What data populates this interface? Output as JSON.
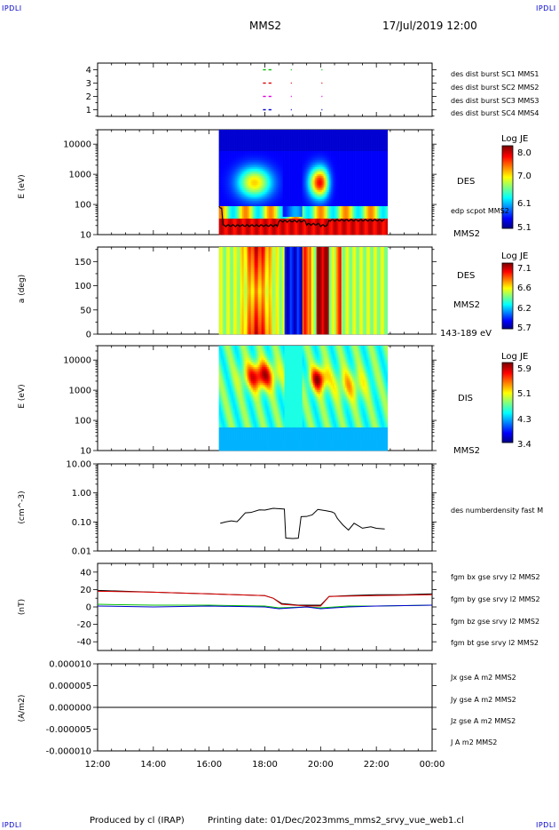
{
  "header": {
    "corner_logo": "IPDLI",
    "spacecraft": "MMS2",
    "datetime": "17/Jul/2019 12:00"
  },
  "footer": {
    "credit": "Produced by cl (IRAP)",
    "printing": "Printing date: 01/Dec/2023",
    "file": "mms_mms2_srvy_vue_web1.cl"
  },
  "colors": {
    "red": "#e00000",
    "magenta": "#e000e0",
    "green": "#00c000",
    "blue": "#0000d0",
    "black": "#000000"
  },
  "x_axis": {
    "ticks": [
      "12:00",
      "14:00",
      "16:00",
      "18:00",
      "20:00",
      "22:00",
      "00:00"
    ],
    "range_hours": [
      12,
      24
    ]
  },
  "panels": {
    "burst": {
      "ticks": [
        "4",
        "3",
        "2",
        "1"
      ],
      "labels": [
        {
          "text": "des dist burst SC1 MMS1",
          "color": "#0000d0"
        },
        {
          "text": "des dist burst SC2 MMS2",
          "color": "#e000e0"
        },
        {
          "text": "des dist burst SC3 MMS3",
          "color": "#e00000"
        },
        {
          "text": "des dist burst SC4 MMS4",
          "color": "#00c000"
        }
      ]
    },
    "des_energy": {
      "ylabel": "E (eV)",
      "ticks": [
        "10000",
        "1000",
        "100",
        "10"
      ],
      "instrument": "DES",
      "overlay": "edp scpot MMS2",
      "spacecraft": "MMS2",
      "colorbar": {
        "title": "Log JE",
        "ticks": [
          "8.0",
          "7.0",
          "6.1",
          "5.1"
        ]
      }
    },
    "des_pitch": {
      "ylabel": "a (deg)",
      "ticks": [
        "150",
        "100",
        "50",
        "0"
      ],
      "instrument": "DES",
      "spacecraft": "MMS2",
      "band": "143-189 eV",
      "colorbar": {
        "title": "Log JE",
        "ticks": [
          "7.1",
          "6.6",
          "6.2",
          "5.7"
        ]
      }
    },
    "dis_energy": {
      "ylabel": "E (eV)",
      "ticks": [
        "10000",
        "1000",
        "100",
        "10"
      ],
      "instrument": "DIS",
      "spacecraft": "MMS2",
      "colorbar": {
        "title": "Log JE",
        "ticks": [
          "5.9",
          "5.1",
          "4.3",
          "3.4"
        ]
      }
    },
    "density": {
      "ylabel": "(cm^-3)",
      "ticks": [
        "10.00",
        "1.00",
        "0.10",
        "0.01"
      ],
      "label": "des numberdensity fast M"
    },
    "fgm": {
      "ylabel": "(nT)",
      "ticks": [
        "40",
        "20",
        "0",
        "-20",
        "-40"
      ],
      "labels": [
        {
          "text": "fgm bx gse srvy l2 MMS2",
          "color": "#e00000"
        },
        {
          "text": "fgm by gse srvy l2 MMS2",
          "color": "#00c000"
        },
        {
          "text": "fgm bz gse srvy l2 MMS2",
          "color": "#0000d0"
        },
        {
          "text": "fgm bt gse srvy l2 MMS2",
          "color": "#000000"
        }
      ]
    },
    "current": {
      "ylabel": "(A/m2)",
      "ticks": [
        "0.000010",
        "0.000005",
        "0.000000",
        "-0.000005",
        "-0.000010"
      ],
      "labels": [
        {
          "text": "Jx gse A m2 MMS2",
          "color": "#e00000"
        },
        {
          "text": "Jy gse A m2 MMS2",
          "color": "#00c000"
        },
        {
          "text": "Jz gse A m2 MMS2",
          "color": "#0000d0"
        },
        {
          "text": "J A m2 MMS2",
          "color": "#000000"
        }
      ]
    }
  },
  "chart_data": [
    {
      "type": "scatter",
      "title": "des dist burst",
      "x_unit": "UT hour",
      "ylim": [
        0.5,
        4.5
      ],
      "series": [
        {
          "name": "des dist burst SC1 MMS1",
          "y": 1,
          "segments": [
            [
              17.9,
              18.1
            ],
            [
              18.1,
              18.3
            ],
            [
              18.9,
              19.0
            ],
            [
              20.0,
              20.05
            ]
          ]
        },
        {
          "name": "des dist burst SC2 MMS2",
          "y": 2,
          "segments": [
            [
              17.9,
              18.1
            ],
            [
              18.1,
              18.3
            ],
            [
              18.9,
              19.0
            ],
            [
              20.0,
              20.05
            ]
          ]
        },
        {
          "name": "des dist burst SC3 MMS3",
          "y": 3,
          "segments": [
            [
              17.9,
              18.1
            ],
            [
              18.1,
              18.3
            ],
            [
              18.9,
              19.0
            ],
            [
              20.0,
              20.05
            ]
          ]
        },
        {
          "name": "des dist burst SC4 MMS4",
          "y": 4,
          "segments": [
            [
              17.9,
              18.1
            ],
            [
              18.1,
              18.3
            ],
            [
              18.9,
              19.0
            ],
            [
              20.0,
              20.05
            ]
          ]
        }
      ]
    },
    {
      "type": "heatmap",
      "xlabel": "",
      "ylabel": "E (eV)",
      "x_range": [
        16.35,
        22.35
      ],
      "ylim": [
        10,
        30000
      ],
      "log_y": true,
      "legend": {
        "title": "Log JE",
        "range": [
          5.1,
          8.0
        ]
      }
    },
    {
      "type": "heatmap",
      "ylabel": "a (deg)",
      "x_range": [
        16.35,
        22.35
      ],
      "ylim": [
        0,
        180
      ],
      "legend": {
        "title": "Log JE",
        "range": [
          5.7,
          7.1
        ]
      }
    },
    {
      "type": "heatmap",
      "ylabel": "E (eV)",
      "x_range": [
        16.35,
        22.35
      ],
      "ylim": [
        10,
        30000
      ],
      "log_y": true,
      "legend": {
        "title": "Log JE",
        "range": [
          3.4,
          5.9
        ]
      }
    },
    {
      "type": "line",
      "ylabel": "(cm^-3)",
      "ylim": [
        0.01,
        10
      ],
      "log_y": true,
      "series": [
        {
          "name": "des numberdensity fast M",
          "x": [
            16.4,
            16.6,
            16.8,
            17.0,
            17.1,
            17.3,
            17.5,
            17.8,
            18.0,
            18.3,
            18.6,
            18.7,
            18.75,
            19.0,
            19.2,
            19.3,
            19.5,
            19.7,
            19.9,
            20.2,
            20.4,
            20.5,
            20.6,
            20.8,
            21.0,
            21.2,
            21.5,
            21.8,
            22.0,
            22.3
          ],
          "y": [
            0.09,
            0.1,
            0.11,
            0.1,
            0.13,
            0.2,
            0.22,
            0.25,
            0.27,
            0.28,
            0.3,
            0.26,
            0.03,
            0.025,
            0.03,
            0.14,
            0.17,
            0.16,
            0.3,
            0.22,
            0.25,
            0.18,
            0.15,
            0.07,
            0.06,
            0.08,
            0.07,
            0.06,
            0.07,
            0.05
          ]
        }
      ]
    },
    {
      "type": "line",
      "ylabel": "(nT)",
      "ylim": [
        -50,
        50
      ],
      "series": [
        {
          "name": "fgm bt gse srvy l2 MMS2",
          "x": [
            12,
            13,
            14,
            15,
            16,
            17,
            18,
            18.3,
            18.6,
            19.2,
            19.6,
            20.0,
            20.3,
            21,
            22,
            23,
            24
          ],
          "y": [
            19,
            18,
            17,
            16,
            15,
            14,
            13,
            10,
            4,
            2,
            2,
            2,
            12,
            13,
            14,
            14,
            15
          ]
        },
        {
          "name": "fgm bx gse srvy l2 MMS2",
          "x": [
            12,
            14,
            16,
            18,
            18.3,
            18.6,
            19.5,
            20.0,
            20.3,
            22,
            24
          ],
          "y": [
            18,
            17,
            15,
            13,
            10,
            3,
            1,
            1,
            12,
            13,
            14
          ]
        },
        {
          "name": "fgm by gse srvy l2 MMS2",
          "x": [
            12,
            14,
            16,
            18,
            18.5,
            19.5,
            20.0,
            21,
            22,
            24
          ],
          "y": [
            3,
            2,
            2,
            1,
            -1,
            0,
            -1,
            1,
            1,
            2
          ]
        },
        {
          "name": "fgm bz gse srvy l2 MMS2",
          "x": [
            12,
            14,
            16,
            18,
            18.5,
            19.5,
            20.0,
            21,
            22,
            24
          ],
          "y": [
            1,
            0,
            1,
            0,
            -2,
            0,
            -2,
            0,
            1,
            2
          ]
        }
      ]
    },
    {
      "type": "line",
      "ylabel": "(A/m2)",
      "ylim": [
        -1e-05,
        1e-05
      ],
      "series": [
        {
          "name": "J A m2 MMS2",
          "x": [
            12,
            24
          ],
          "y": [
            0,
            0
          ]
        }
      ]
    }
  ]
}
